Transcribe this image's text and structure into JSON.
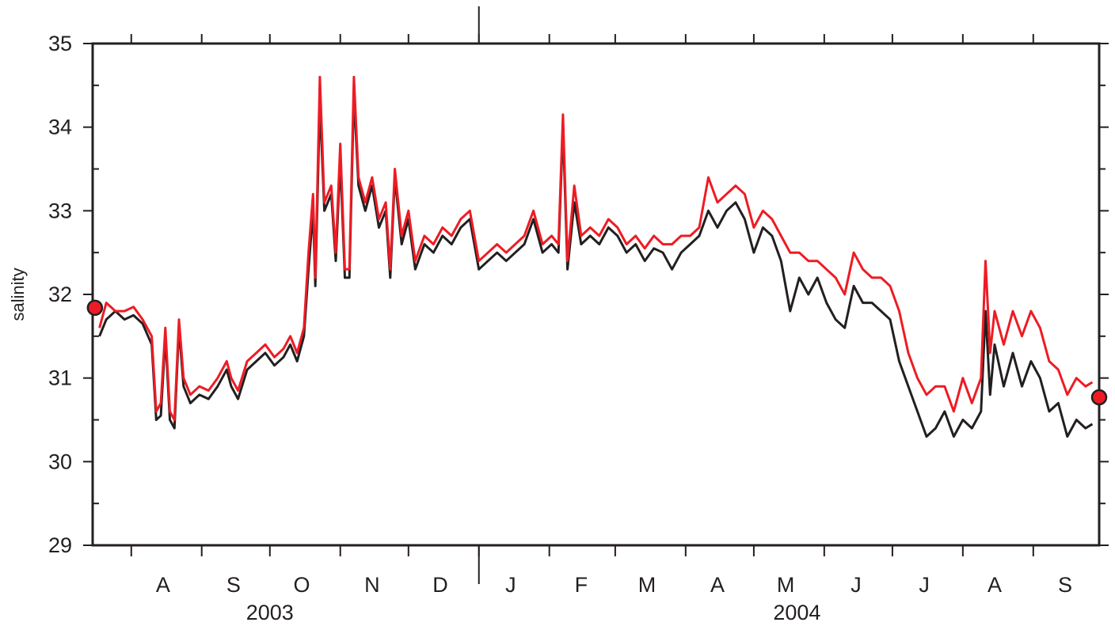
{
  "chart_data": {
    "type": "line",
    "title": "",
    "xlabel": "",
    "ylabel": "salinity",
    "ylim": [
      29,
      35
    ],
    "xlim": [
      "2003-07-15",
      "2004-09-30"
    ],
    "y_ticks": [
      29,
      30,
      31,
      32,
      33,
      34,
      35
    ],
    "month_labels": [
      {
        "label": "A",
        "date": "2003-08-15"
      },
      {
        "label": "S",
        "date": "2003-09-15"
      },
      {
        "label": "O",
        "date": "2003-10-15"
      },
      {
        "label": "N",
        "date": "2003-11-15"
      },
      {
        "label": "D",
        "date": "2003-12-15"
      },
      {
        "label": "J",
        "date": "2004-01-15"
      },
      {
        "label": "F",
        "date": "2004-02-15"
      },
      {
        "label": "M",
        "date": "2004-03-15"
      },
      {
        "label": "A",
        "date": "2004-04-15"
      },
      {
        "label": "M",
        "date": "2004-05-15"
      },
      {
        "label": "J",
        "date": "2004-06-15"
      },
      {
        "label": "J",
        "date": "2004-07-15"
      },
      {
        "label": "A",
        "date": "2004-08-15"
      },
      {
        "label": "S",
        "date": "2004-09-15"
      }
    ],
    "year_labels": [
      {
        "label": "2003",
        "date": "2003-10-01"
      },
      {
        "label": "2004",
        "date": "2004-05-20"
      }
    ],
    "year_boundary": "2004-01-01",
    "grid": false,
    "colors": {
      "black_series": "#231f20",
      "red_series": "#ed1c24",
      "marker_fill": "#ed1c24"
    },
    "series": [
      {
        "color": "#231f20",
        "points": [
          [
            "2003-07-18",
            31.5
          ],
          [
            "2003-07-21",
            31.7
          ],
          [
            "2003-07-25",
            31.8
          ],
          [
            "2003-07-29",
            31.7
          ],
          [
            "2003-08-02",
            31.75
          ],
          [
            "2003-08-06",
            31.65
          ],
          [
            "2003-08-10",
            31.4
          ],
          [
            "2003-08-12",
            30.5
          ],
          [
            "2003-08-14",
            30.55
          ],
          [
            "2003-08-16",
            31.5
          ],
          [
            "2003-08-18",
            30.5
          ],
          [
            "2003-08-20",
            30.4
          ],
          [
            "2003-08-22",
            31.6
          ],
          [
            "2003-08-24",
            30.9
          ],
          [
            "2003-08-27",
            30.7
          ],
          [
            "2003-08-31",
            30.8
          ],
          [
            "2003-09-04",
            30.75
          ],
          [
            "2003-09-08",
            30.9
          ],
          [
            "2003-09-12",
            31.1
          ],
          [
            "2003-09-14",
            30.9
          ],
          [
            "2003-09-17",
            30.75
          ],
          [
            "2003-09-21",
            31.1
          ],
          [
            "2003-09-25",
            31.2
          ],
          [
            "2003-09-29",
            31.3
          ],
          [
            "2003-10-03",
            31.15
          ],
          [
            "2003-10-07",
            31.25
          ],
          [
            "2003-10-10",
            31.4
          ],
          [
            "2003-10-13",
            31.2
          ],
          [
            "2003-10-16",
            31.5
          ],
          [
            "2003-10-18",
            32.3
          ],
          [
            "2003-10-20",
            33.0
          ],
          [
            "2003-10-21",
            32.1
          ],
          [
            "2003-10-23",
            34.3
          ],
          [
            "2003-10-25",
            33.0
          ],
          [
            "2003-10-28",
            33.2
          ],
          [
            "2003-10-30",
            32.4
          ],
          [
            "2003-11-01",
            33.6
          ],
          [
            "2003-11-03",
            32.2
          ],
          [
            "2003-11-05",
            32.2
          ],
          [
            "2003-11-07",
            34.4
          ],
          [
            "2003-11-09",
            33.3
          ],
          [
            "2003-11-12",
            33.0
          ],
          [
            "2003-11-15",
            33.3
          ],
          [
            "2003-11-18",
            32.8
          ],
          [
            "2003-11-21",
            33.0
          ],
          [
            "2003-11-23",
            32.2
          ],
          [
            "2003-11-25",
            33.4
          ],
          [
            "2003-11-28",
            32.6
          ],
          [
            "2003-12-01",
            32.9
          ],
          [
            "2003-12-04",
            32.3
          ],
          [
            "2003-12-08",
            32.6
          ],
          [
            "2003-12-12",
            32.5
          ],
          [
            "2003-12-16",
            32.7
          ],
          [
            "2003-12-20",
            32.6
          ],
          [
            "2003-12-24",
            32.8
          ],
          [
            "2003-12-28",
            32.9
          ],
          [
            "2004-01-01",
            32.3
          ],
          [
            "2004-01-05",
            32.4
          ],
          [
            "2004-01-09",
            32.5
          ],
          [
            "2004-01-13",
            32.4
          ],
          [
            "2004-01-17",
            32.5
          ],
          [
            "2004-01-21",
            32.6
          ],
          [
            "2004-01-25",
            32.9
          ],
          [
            "2004-01-29",
            32.5
          ],
          [
            "2004-02-02",
            32.6
          ],
          [
            "2004-02-05",
            32.5
          ],
          [
            "2004-02-07",
            34.0
          ],
          [
            "2004-02-09",
            32.3
          ],
          [
            "2004-02-12",
            33.1
          ],
          [
            "2004-02-15",
            32.6
          ],
          [
            "2004-02-19",
            32.7
          ],
          [
            "2004-02-23",
            32.6
          ],
          [
            "2004-02-27",
            32.8
          ],
          [
            "2004-03-02",
            32.7
          ],
          [
            "2004-03-06",
            32.5
          ],
          [
            "2004-03-10",
            32.6
          ],
          [
            "2004-03-14",
            32.4
          ],
          [
            "2004-03-18",
            32.55
          ],
          [
            "2004-03-22",
            32.5
          ],
          [
            "2004-03-26",
            32.3
          ],
          [
            "2004-03-30",
            32.5
          ],
          [
            "2004-04-03",
            32.6
          ],
          [
            "2004-04-07",
            32.7
          ],
          [
            "2004-04-11",
            33.0
          ],
          [
            "2004-04-15",
            32.8
          ],
          [
            "2004-04-19",
            33.0
          ],
          [
            "2004-04-23",
            33.1
          ],
          [
            "2004-04-27",
            32.9
          ],
          [
            "2004-05-01",
            32.5
          ],
          [
            "2004-05-05",
            32.8
          ],
          [
            "2004-05-09",
            32.7
          ],
          [
            "2004-05-13",
            32.4
          ],
          [
            "2004-05-17",
            31.8
          ],
          [
            "2004-05-21",
            32.2
          ],
          [
            "2004-05-25",
            32.0
          ],
          [
            "2004-05-29",
            32.2
          ],
          [
            "2004-06-02",
            31.9
          ],
          [
            "2004-06-06",
            31.7
          ],
          [
            "2004-06-10",
            31.6
          ],
          [
            "2004-06-14",
            32.1
          ],
          [
            "2004-06-18",
            31.9
          ],
          [
            "2004-06-22",
            31.9
          ],
          [
            "2004-06-26",
            31.8
          ],
          [
            "2004-06-30",
            31.7
          ],
          [
            "2004-07-04",
            31.2
          ],
          [
            "2004-07-08",
            30.9
          ],
          [
            "2004-07-12",
            30.6
          ],
          [
            "2004-07-16",
            30.3
          ],
          [
            "2004-07-20",
            30.4
          ],
          [
            "2004-07-24",
            30.6
          ],
          [
            "2004-07-28",
            30.3
          ],
          [
            "2004-08-01",
            30.5
          ],
          [
            "2004-08-05",
            30.4
          ],
          [
            "2004-08-09",
            30.6
          ],
          [
            "2004-08-11",
            31.8
          ],
          [
            "2004-08-13",
            30.8
          ],
          [
            "2004-08-15",
            31.4
          ],
          [
            "2004-08-19",
            30.9
          ],
          [
            "2004-08-23",
            31.3
          ],
          [
            "2004-08-27",
            30.9
          ],
          [
            "2004-08-31",
            31.2
          ],
          [
            "2004-09-04",
            31.0
          ],
          [
            "2004-09-08",
            30.6
          ],
          [
            "2004-09-12",
            30.7
          ],
          [
            "2004-09-16",
            30.3
          ],
          [
            "2004-09-20",
            30.5
          ],
          [
            "2004-09-24",
            30.4
          ],
          [
            "2004-09-27",
            30.45
          ]
        ]
      },
      {
        "color": "#ed1c24",
        "points": [
          [
            "2003-07-18",
            31.6
          ],
          [
            "2003-07-21",
            31.9
          ],
          [
            "2003-07-25",
            31.8
          ],
          [
            "2003-07-29",
            31.8
          ],
          [
            "2003-08-02",
            31.85
          ],
          [
            "2003-08-06",
            31.7
          ],
          [
            "2003-08-10",
            31.5
          ],
          [
            "2003-08-12",
            30.6
          ],
          [
            "2003-08-14",
            30.7
          ],
          [
            "2003-08-16",
            31.6
          ],
          [
            "2003-08-18",
            30.6
          ],
          [
            "2003-08-20",
            30.5
          ],
          [
            "2003-08-22",
            31.7
          ],
          [
            "2003-08-24",
            31.0
          ],
          [
            "2003-08-27",
            30.8
          ],
          [
            "2003-08-31",
            30.9
          ],
          [
            "2003-09-04",
            30.85
          ],
          [
            "2003-09-08",
            31.0
          ],
          [
            "2003-09-12",
            31.2
          ],
          [
            "2003-09-14",
            31.0
          ],
          [
            "2003-09-17",
            30.85
          ],
          [
            "2003-09-21",
            31.2
          ],
          [
            "2003-09-25",
            31.3
          ],
          [
            "2003-09-29",
            31.4
          ],
          [
            "2003-10-03",
            31.25
          ],
          [
            "2003-10-07",
            31.35
          ],
          [
            "2003-10-10",
            31.5
          ],
          [
            "2003-10-13",
            31.3
          ],
          [
            "2003-10-16",
            31.6
          ],
          [
            "2003-10-18",
            32.5
          ],
          [
            "2003-10-20",
            33.2
          ],
          [
            "2003-10-21",
            32.2
          ],
          [
            "2003-10-23",
            34.6
          ],
          [
            "2003-10-25",
            33.1
          ],
          [
            "2003-10-28",
            33.3
          ],
          [
            "2003-10-30",
            32.5
          ],
          [
            "2003-11-01",
            33.8
          ],
          [
            "2003-11-03",
            32.3
          ],
          [
            "2003-11-05",
            32.3
          ],
          [
            "2003-11-07",
            34.6
          ],
          [
            "2003-11-09",
            33.4
          ],
          [
            "2003-11-12",
            33.1
          ],
          [
            "2003-11-15",
            33.4
          ],
          [
            "2003-11-18",
            32.9
          ],
          [
            "2003-11-21",
            33.1
          ],
          [
            "2003-11-23",
            32.3
          ],
          [
            "2003-11-25",
            33.5
          ],
          [
            "2003-11-28",
            32.7
          ],
          [
            "2003-12-01",
            33.0
          ],
          [
            "2003-12-04",
            32.4
          ],
          [
            "2003-12-08",
            32.7
          ],
          [
            "2003-12-12",
            32.6
          ],
          [
            "2003-12-16",
            32.8
          ],
          [
            "2003-12-20",
            32.7
          ],
          [
            "2003-12-24",
            32.9
          ],
          [
            "2003-12-28",
            33.0
          ],
          [
            "2004-01-01",
            32.4
          ],
          [
            "2004-01-05",
            32.5
          ],
          [
            "2004-01-09",
            32.6
          ],
          [
            "2004-01-13",
            32.5
          ],
          [
            "2004-01-17",
            32.6
          ],
          [
            "2004-01-21",
            32.7
          ],
          [
            "2004-01-25",
            33.0
          ],
          [
            "2004-01-29",
            32.6
          ],
          [
            "2004-02-02",
            32.7
          ],
          [
            "2004-02-05",
            32.6
          ],
          [
            "2004-02-07",
            34.15
          ],
          [
            "2004-02-09",
            32.4
          ],
          [
            "2004-02-12",
            33.3
          ],
          [
            "2004-02-15",
            32.7
          ],
          [
            "2004-02-19",
            32.8
          ],
          [
            "2004-02-23",
            32.7
          ],
          [
            "2004-02-27",
            32.9
          ],
          [
            "2004-03-02",
            32.8
          ],
          [
            "2004-03-06",
            32.6
          ],
          [
            "2004-03-10",
            32.7
          ],
          [
            "2004-03-14",
            32.55
          ],
          [
            "2004-03-18",
            32.7
          ],
          [
            "2004-03-22",
            32.6
          ],
          [
            "2004-03-26",
            32.6
          ],
          [
            "2004-03-30",
            32.7
          ],
          [
            "2004-04-03",
            32.7
          ],
          [
            "2004-04-07",
            32.8
          ],
          [
            "2004-04-11",
            33.4
          ],
          [
            "2004-04-15",
            33.1
          ],
          [
            "2004-04-19",
            33.2
          ],
          [
            "2004-04-23",
            33.3
          ],
          [
            "2004-04-27",
            33.2
          ],
          [
            "2004-05-01",
            32.8
          ],
          [
            "2004-05-05",
            33.0
          ],
          [
            "2004-05-09",
            32.9
          ],
          [
            "2004-05-13",
            32.7
          ],
          [
            "2004-05-17",
            32.5
          ],
          [
            "2004-05-21",
            32.5
          ],
          [
            "2004-05-25",
            32.4
          ],
          [
            "2004-05-29",
            32.4
          ],
          [
            "2004-06-02",
            32.3
          ],
          [
            "2004-06-06",
            32.2
          ],
          [
            "2004-06-10",
            32.0
          ],
          [
            "2004-06-14",
            32.5
          ],
          [
            "2004-06-18",
            32.3
          ],
          [
            "2004-06-22",
            32.2
          ],
          [
            "2004-06-26",
            32.2
          ],
          [
            "2004-06-30",
            32.1
          ],
          [
            "2004-07-04",
            31.8
          ],
          [
            "2004-07-08",
            31.3
          ],
          [
            "2004-07-12",
            31.0
          ],
          [
            "2004-07-16",
            30.8
          ],
          [
            "2004-07-20",
            30.9
          ],
          [
            "2004-07-24",
            30.9
          ],
          [
            "2004-07-28",
            30.6
          ],
          [
            "2004-08-01",
            31.0
          ],
          [
            "2004-08-05",
            30.7
          ],
          [
            "2004-08-09",
            31.0
          ],
          [
            "2004-08-11",
            32.4
          ],
          [
            "2004-08-13",
            31.3
          ],
          [
            "2004-08-15",
            31.8
          ],
          [
            "2004-08-19",
            31.4
          ],
          [
            "2004-08-23",
            31.8
          ],
          [
            "2004-08-27",
            31.5
          ],
          [
            "2004-08-31",
            31.8
          ],
          [
            "2004-09-04",
            31.6
          ],
          [
            "2004-09-08",
            31.2
          ],
          [
            "2004-09-12",
            31.1
          ],
          [
            "2004-09-16",
            30.8
          ],
          [
            "2004-09-20",
            31.0
          ],
          [
            "2004-09-24",
            30.9
          ],
          [
            "2004-09-27",
            30.95
          ]
        ]
      }
    ],
    "markers": [
      {
        "date": "2003-07-16",
        "value": 31.84,
        "fill": "#ed1c24"
      },
      {
        "date": "2004-09-30",
        "value": 30.77,
        "fill": "#ed1c24"
      }
    ]
  }
}
